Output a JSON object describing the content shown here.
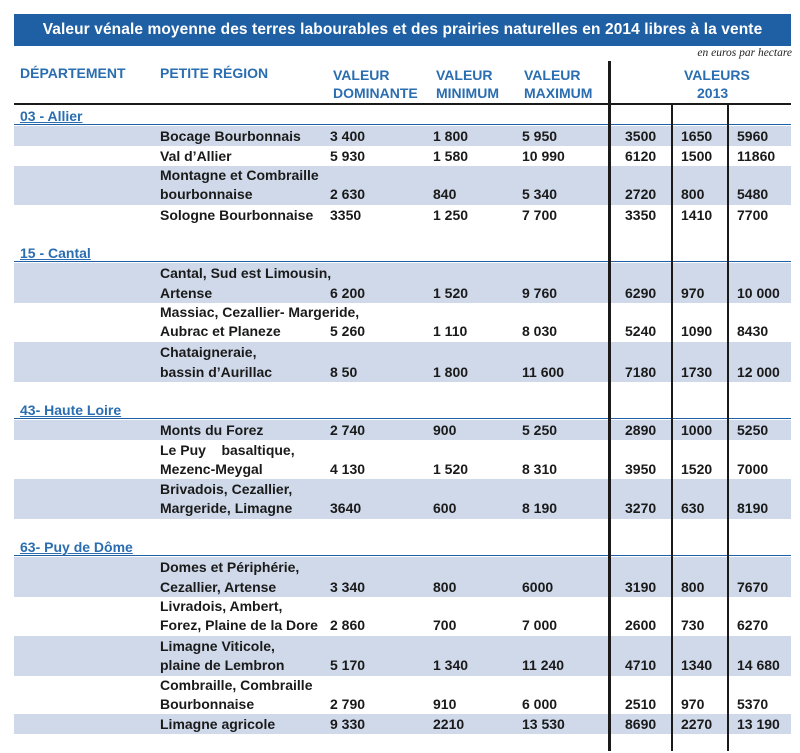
{
  "title": "Valeur vénale moyenne des terres labourables et des prairies naturelles en 2014 libres à la vente",
  "unit_note": "en euros par hectare",
  "headers": {
    "departement": "DÉPARTEMENT",
    "petite_region": "PETITE RÉGION",
    "valeur_dominante_1": "VALEUR",
    "valeur_dominante_2": "DOMINANTE",
    "valeur_minimum_1": "VALEUR",
    "valeur_minimum_2": "MINIMUM",
    "valeur_maximum_1": "VALEUR",
    "valeur_maximum_2": "MAXIMUM",
    "valeurs_2013_1": "VALEURS",
    "valeurs_2013_2": "2013"
  },
  "departments": [
    {
      "name": "03 - Allier",
      "rows": [
        {
          "region": "Bocage Bourbonnais",
          "dominante": "3 400",
          "minimum": "1 800",
          "maximum": "5 950",
          "dom_2013": "3500",
          "min_2013": "1650",
          "max_2013": "5960"
        },
        {
          "region": "Val d’Allier",
          "dominante": "5 930",
          "minimum": "1 580",
          "maximum": "10 990",
          "dom_2013": "6120",
          "min_2013": "1500",
          "max_2013": "11860"
        },
        {
          "region_line1": "Montagne et Combraille",
          "region_line2": "bourbonnaise",
          "dominante": "2 630",
          "minimum": "840",
          "maximum": "5 340",
          "dom_2013": "2720",
          "min_2013": "800",
          "max_2013": "5480"
        },
        {
          "region": "Sologne Bourbonnaise",
          "dominante": "3350",
          "minimum": "1 250",
          "maximum": "7 700",
          "dom_2013": "3350",
          "min_2013": "1410",
          "max_2013": "7700"
        }
      ]
    },
    {
      "name": "15 - Cantal",
      "rows": [
        {
          "region_line1": "Cantal, Sud est Limousin,",
          "region_line2": "Artense",
          "dominante": "6 200",
          "minimum": "1 520",
          "maximum": "9 760",
          "dom_2013": "6290",
          "min_2013": "970",
          "max_2013": "10 000"
        },
        {
          "region_line1": "Massiac, Cezallier- Margeride,",
          "region_line2": "Aubrac et Planeze",
          "dominante": "5 260",
          "minimum": "1 110",
          "maximum": "8 030",
          "dom_2013": "5240",
          "min_2013": "1090",
          "max_2013": "8430"
        },
        {
          "region_line1": "Chataigneraie,",
          "region_line2": "bassin d’Aurillac",
          "dominante": "8 50",
          "minimum": "1 800",
          "maximum": "11 600",
          "dom_2013": "7180",
          "min_2013": "1730",
          "max_2013": "12 000"
        }
      ]
    },
    {
      "name": "43- Haute Loire",
      "rows": [
        {
          "region": "Monts du Forez",
          "dominante": "2 740",
          "minimum": "900",
          "maximum": "5 250",
          "dom_2013": "2890",
          "min_2013": "1000",
          "max_2013": "5250"
        },
        {
          "region_line1": "Le Puy    basaltique,",
          "region_line2": "Mezenc-Meygal",
          "dominante": "4 130",
          "minimum": "1 520",
          "maximum": "8 310",
          "dom_2013": "3950",
          "min_2013": "1520",
          "max_2013": "7000"
        },
        {
          "region_line1": "Brivadois, Cezallier,",
          "region_line2": "Margeride, Limagne",
          "dominante": "3640",
          "minimum": "600",
          "maximum": "8 190",
          "dom_2013": "3270",
          "min_2013": "630",
          "max_2013": "8190"
        }
      ]
    },
    {
      "name": "63- Puy de Dôme",
      "rows": [
        {
          "region_line1": "Domes et Périphérie,",
          "region_line2": "Cezallier, Artense",
          "dominante": "3 340",
          "minimum": "800",
          "maximum": "6000",
          "dom_2013": "3190",
          "min_2013": "800",
          "max_2013": "7670"
        },
        {
          "region_line1": "Livradois, Ambert,",
          "region_line2": "Forez, Plaine de la Dore",
          "dominante": "2 860",
          "minimum": "700",
          "maximum": "7 000",
          "dom_2013": "2600",
          "min_2013": "730",
          "max_2013": "6270"
        },
        {
          "region_line1": "Limagne Viticole,",
          "region_line2": "plaine de Lembron",
          "dominante": "5 170",
          "minimum": "1 340",
          "maximum": "11 240",
          "dom_2013": "4710",
          "min_2013": "1340",
          "max_2013": "14 680"
        },
        {
          "region_line1": "Combraille, Combraille",
          "region_line2": "Bourbonnaise",
          "dominante": "2 790",
          "minimum": "910",
          "maximum": "6 000",
          "dom_2013": "2510",
          "min_2013": "970",
          "max_2013": "5370"
        },
        {
          "region": "Limagne agricole",
          "dominante": "9 330",
          "minimum": "2210",
          "maximum": "13 530",
          "dom_2013": "8690",
          "min_2013": "2270",
          "max_2013": "13 190"
        }
      ]
    }
  ],
  "colors": {
    "title_bg": "#1f5fa4",
    "header_text": "#2a6db0",
    "row_band": "#cfd9e9"
  }
}
